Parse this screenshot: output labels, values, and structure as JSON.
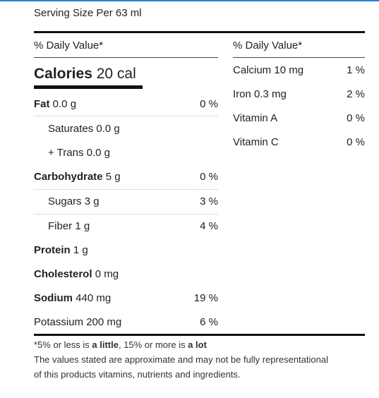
{
  "serving_size": "Serving Size Per 63 ml",
  "left_header": "% Daily Value*",
  "right_header": "% Daily Value*",
  "calories": {
    "label": "Calories",
    "value": "20 cal"
  },
  "nutrients": [
    {
      "name": "Fat",
      "amount": "0.0 g",
      "dv": "0 %"
    },
    {
      "name": "Saturates",
      "amount": "0.0 g",
      "dv": ""
    },
    {
      "name": "+ Trans",
      "amount": "0.0 g",
      "dv": ""
    },
    {
      "name": "Carbohydrate",
      "amount": "5 g",
      "dv": "0 %"
    },
    {
      "name": "Sugars",
      "amount": "3 g",
      "dv": "3 %"
    },
    {
      "name": "Fiber",
      "amount": "1 g",
      "dv": "4 %"
    },
    {
      "name": "Protein",
      "amount": "1 g",
      "dv": ""
    },
    {
      "name": "Cholesterol",
      "amount": "0 mg",
      "dv": ""
    },
    {
      "name": "Sodium",
      "amount": "440 mg",
      "dv": "19 %"
    },
    {
      "name": "Potassium",
      "amount": "200 mg",
      "dv": "6 %"
    }
  ],
  "vitamins": [
    {
      "name": "Calcium",
      "amount": "10 mg",
      "dv": "1 %"
    },
    {
      "name": "Iron",
      "amount": "0.3 mg",
      "dv": "2 %"
    },
    {
      "name": "Vitamin A",
      "amount": "",
      "dv": "0 %"
    },
    {
      "name": "Vitamin C",
      "amount": "",
      "dv": "0 %"
    }
  ],
  "footnote": {
    "prefix": "*5% or less is ",
    "little": "a little",
    "middle": ", 15% or more is ",
    "lot": "a lot",
    "disclaimer_line1": "The values stated are approximate and may not be fully representational",
    "disclaimer_line2": "of this products vitamins, nutrients and ingredients."
  }
}
